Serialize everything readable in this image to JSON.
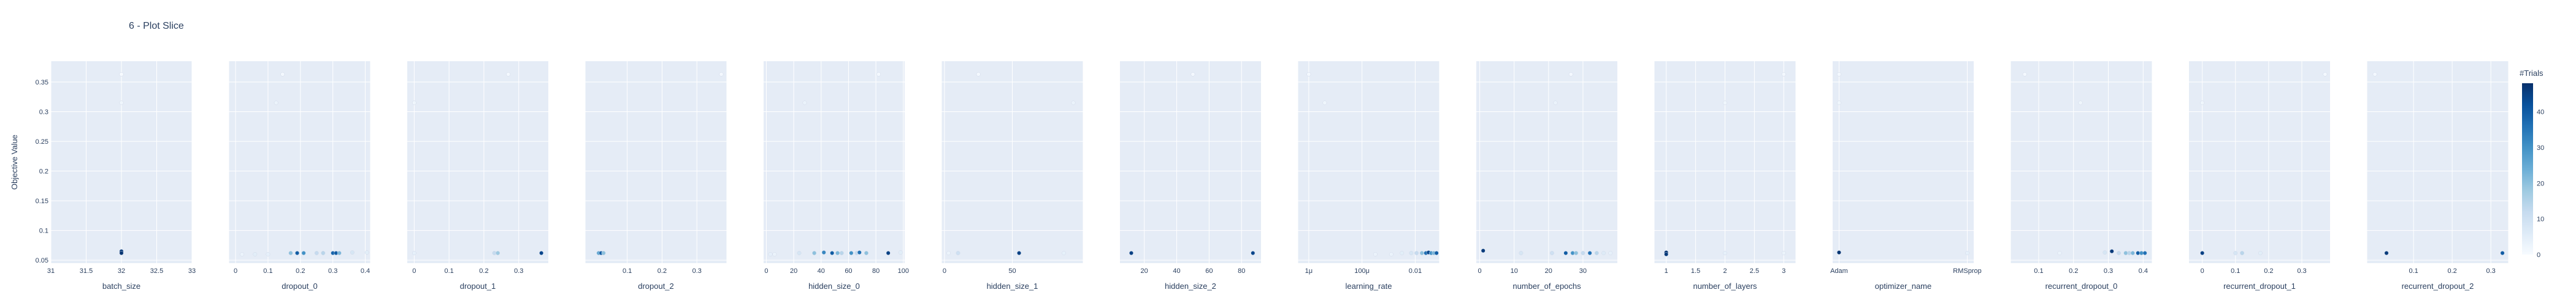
{
  "chart_data": {
    "type": "scatter",
    "title": "6 - Plot Slice",
    "ylabel": "Objective Value",
    "ylim": [
      0.045,
      0.385
    ],
    "y_ticks": [
      0.05,
      0.1,
      0.15,
      0.2,
      0.25,
      0.3,
      0.35
    ],
    "y_tick_labels": [
      "0.05",
      "0.1",
      "0.15",
      "0.2",
      "0.25",
      "0.3",
      "0.35"
    ],
    "colorbar": {
      "title": "#Trials",
      "range": [
        0,
        48
      ],
      "ticks": [
        0,
        10,
        20,
        30,
        40
      ],
      "tick_labels": [
        "0",
        "10",
        "20",
        "30",
        "40"
      ],
      "colorscale": [
        "#f7fbff",
        "#deebf7",
        "#c6dbef",
        "#9ecae1",
        "#6baed6",
        "#4292c6",
        "#2171b5",
        "#08519c",
        "#08306b"
      ]
    },
    "panels": [
      {
        "xlabel": "batch_size",
        "scale": "linear",
        "xlim": [
          31,
          33
        ],
        "ticks": [
          31,
          31.5,
          32,
          32.5,
          33
        ],
        "tick_labels": [
          "31",
          "31.5",
          "32",
          "32.5",
          "33"
        ],
        "points": [
          [
            32,
            0.363,
            0
          ],
          [
            32,
            0.315,
            2
          ],
          [
            32,
            0.065,
            46
          ],
          [
            32,
            0.062,
            47
          ]
        ]
      },
      {
        "xlabel": "dropout_0",
        "scale": "linear",
        "xlim": [
          -0.02,
          0.415
        ],
        "ticks": [
          0,
          0.1,
          0.2,
          0.3,
          0.4
        ],
        "tick_labels": [
          "0",
          "0.1",
          "0.2",
          "0.3",
          "0.4"
        ],
        "points": [
          [
            0.02,
            0.06,
            3
          ],
          [
            0.06,
            0.06,
            5
          ],
          [
            0.1,
            0.06,
            4
          ],
          [
            0.125,
            0.315,
            3
          ],
          [
            0.145,
            0.363,
            1
          ],
          [
            0.17,
            0.062,
            20
          ],
          [
            0.19,
            0.062,
            40
          ],
          [
            0.21,
            0.062,
            30
          ],
          [
            0.25,
            0.062,
            12
          ],
          [
            0.27,
            0.062,
            14
          ],
          [
            0.3,
            0.062,
            38
          ],
          [
            0.31,
            0.062,
            40
          ],
          [
            0.32,
            0.062,
            22
          ],
          [
            0.36,
            0.063,
            8
          ],
          [
            0.405,
            0.063,
            5
          ]
        ]
      },
      {
        "xlabel": "dropout_1",
        "scale": "linear",
        "xlim": [
          -0.02,
          0.385
        ],
        "ticks": [
          0,
          0.1,
          0.2,
          0.3
        ],
        "tick_labels": [
          "0",
          "0.1",
          "0.2",
          "0.3"
        ],
        "points": [
          [
            0.0,
            0.315,
            2
          ],
          [
            0.0,
            0.062,
            4
          ],
          [
            0.23,
            0.062,
            12
          ],
          [
            0.24,
            0.062,
            18
          ],
          [
            0.27,
            0.363,
            1
          ],
          [
            0.365,
            0.062,
            44
          ]
        ]
      },
      {
        "xlabel": "dropout_2",
        "scale": "linear",
        "xlim": [
          -0.02,
          0.385
        ],
        "ticks": [
          0.1,
          0.2,
          0.3
        ],
        "tick_labels": [
          "0.1",
          "0.2",
          "0.3"
        ],
        "points": [
          [
            0.018,
            0.062,
            25
          ],
          [
            0.025,
            0.062,
            40
          ],
          [
            0.032,
            0.062,
            20
          ],
          [
            0.37,
            0.363,
            1
          ]
        ]
      },
      {
        "xlabel": "hidden_size_0",
        "scale": "linear",
        "xlim": [
          -2,
          101
        ],
        "ticks": [
          0,
          20,
          40,
          60,
          80,
          100
        ],
        "tick_labels": [
          "0",
          "20",
          "40",
          "60",
          "80",
          "100"
        ],
        "points": [
          [
            3,
            0.06,
            4
          ],
          [
            6,
            0.06,
            3
          ],
          [
            24,
            0.062,
            8
          ],
          [
            28,
            0.315,
            3
          ],
          [
            35,
            0.062,
            20
          ],
          [
            42,
            0.063,
            32
          ],
          [
            48,
            0.062,
            40
          ],
          [
            52,
            0.062,
            22
          ],
          [
            55,
            0.062,
            14
          ],
          [
            62,
            0.062,
            30
          ],
          [
            66,
            0.062,
            12
          ],
          [
            68,
            0.063,
            36
          ],
          [
            73,
            0.062,
            20
          ],
          [
            82,
            0.363,
            1
          ],
          [
            89,
            0.062,
            45
          ],
          [
            98,
            0.063,
            5
          ]
        ]
      },
      {
        "xlabel": "hidden_size_1",
        "scale": "linear",
        "xlim": [
          -2,
          102
        ],
        "ticks": [
          0,
          50
        ],
        "tick_labels": [
          "0",
          "50"
        ],
        "points": [
          [
            3,
            0.062,
            3
          ],
          [
            10,
            0.062,
            10
          ],
          [
            25,
            0.363,
            1
          ],
          [
            55,
            0.062,
            45
          ],
          [
            88,
            0.062,
            4
          ],
          [
            95,
            0.315,
            3
          ]
        ]
      },
      {
        "xlabel": "hidden_size_2",
        "scale": "linear",
        "xlim": [
          5,
          92
        ],
        "ticks": [
          20,
          40,
          60,
          80
        ],
        "tick_labels": [
          "20",
          "40",
          "60",
          "80"
        ],
        "points": [
          [
            12,
            0.062,
            45
          ],
          [
            50,
            0.363,
            1
          ],
          [
            87,
            0.062,
            44
          ]
        ]
      },
      {
        "xlabel": "learning_rate",
        "scale": "log",
        "xlim": [
          -6.4,
          -1.1
        ],
        "ticks": [
          -6,
          -4,
          -2
        ],
        "tick_labels": [
          "1μ",
          "100μ",
          "0.01"
        ],
        "points": [
          [
            -6,
            0.363,
            1
          ],
          [
            -5.4,
            0.315,
            2
          ],
          [
            -3.5,
            0.06,
            3
          ],
          [
            -2.9,
            0.06,
            3
          ],
          [
            -2.5,
            0.062,
            5
          ],
          [
            -2.15,
            0.062,
            8
          ],
          [
            -1.95,
            0.062,
            12
          ],
          [
            -1.75,
            0.062,
            20
          ],
          [
            -1.6,
            0.062,
            36
          ],
          [
            -1.5,
            0.063,
            44
          ],
          [
            -1.4,
            0.062,
            30
          ],
          [
            -1.3,
            0.062,
            22
          ],
          [
            -1.2,
            0.062,
            40
          ]
        ]
      },
      {
        "xlabel": "number_of_epochs",
        "scale": "linear",
        "xlim": [
          -1,
          40
        ],
        "ticks": [
          0,
          10,
          20,
          30
        ],
        "tick_labels": [
          "0",
          "10",
          "20",
          "30"
        ],
        "points": [
          [
            1,
            0.066,
            46
          ],
          [
            12,
            0.062,
            8
          ],
          [
            21,
            0.062,
            10
          ],
          [
            22,
            0.315,
            3
          ],
          [
            25,
            0.062,
            40
          ],
          [
            26.5,
            0.363,
            1
          ],
          [
            27,
            0.062,
            30
          ],
          [
            28,
            0.062,
            20
          ],
          [
            30,
            0.062,
            12
          ],
          [
            32,
            0.062,
            36
          ],
          [
            34,
            0.062,
            14
          ],
          [
            36,
            0.062,
            6
          ],
          [
            38,
            0.062,
            4
          ]
        ]
      },
      {
        "xlabel": "number_of_layers",
        "scale": "linear",
        "xlim": [
          0.8,
          3.2
        ],
        "ticks": [
          1,
          1.5,
          2,
          2.5,
          3
        ],
        "tick_labels": [
          "1",
          "1.5",
          "2",
          "2.5",
          "3"
        ],
        "points": [
          [
            1,
            0.063,
            47
          ],
          [
            1,
            0.06,
            46
          ],
          [
            2,
            0.062,
            4
          ],
          [
            2,
            0.315,
            2
          ],
          [
            3,
            0.363,
            1
          ],
          [
            3,
            0.062,
            3
          ]
        ]
      },
      {
        "xlabel": "optimizer_name",
        "scale": "category",
        "xlim": [
          -0.05,
          1.05
        ],
        "ticks": [
          0,
          1
        ],
        "tick_labels": [
          "Adam",
          "RMSprop"
        ],
        "points": [
          [
            0,
            0.363,
            1
          ],
          [
            0,
            0.315,
            2
          ],
          [
            0,
            0.063,
            47
          ],
          [
            1,
            0.062,
            4
          ]
        ]
      },
      {
        "xlabel": "recurrent_dropout_0",
        "scale": "linear",
        "xlim": [
          0.02,
          0.425
        ],
        "ticks": [
          0.1,
          0.2,
          0.3,
          0.4
        ],
        "tick_labels": [
          "0.1",
          "0.2",
          "0.3",
          "0.4"
        ],
        "points": [
          [
            0.06,
            0.363,
            1
          ],
          [
            0.16,
            0.062,
            3
          ],
          [
            0.22,
            0.315,
            2
          ],
          [
            0.29,
            0.063,
            8
          ],
          [
            0.31,
            0.065,
            46
          ],
          [
            0.33,
            0.062,
            12
          ],
          [
            0.35,
            0.062,
            20
          ],
          [
            0.36,
            0.062,
            14
          ],
          [
            0.37,
            0.062,
            22
          ],
          [
            0.385,
            0.062,
            40
          ],
          [
            0.395,
            0.062,
            30
          ],
          [
            0.405,
            0.062,
            36
          ]
        ]
      },
      {
        "xlabel": "recurrent_dropout_1",
        "scale": "linear",
        "xlim": [
          -0.04,
          0.385
        ],
        "ticks": [
          0,
          0.1,
          0.2,
          0.3
        ],
        "tick_labels": [
          "0",
          "0.1",
          "0.2",
          "0.3"
        ],
        "points": [
          [
            0.0,
            0.062,
            45
          ],
          [
            0.0,
            0.315,
            2
          ],
          [
            0.1,
            0.062,
            8
          ],
          [
            0.12,
            0.062,
            14
          ],
          [
            0.175,
            0.062,
            5
          ],
          [
            0.37,
            0.363,
            1
          ]
        ]
      },
      {
        "xlabel": "recurrent_dropout_2",
        "scale": "linear",
        "xlim": [
          -0.02,
          0.345
        ],
        "ticks": [
          0.1,
          0.2,
          0.3
        ],
        "tick_labels": [
          "0.1",
          "0.2",
          "0.3"
        ],
        "points": [
          [
            0.0,
            0.363,
            1
          ],
          [
            0.03,
            0.062,
            46
          ],
          [
            0.33,
            0.062,
            40
          ]
        ]
      }
    ]
  }
}
